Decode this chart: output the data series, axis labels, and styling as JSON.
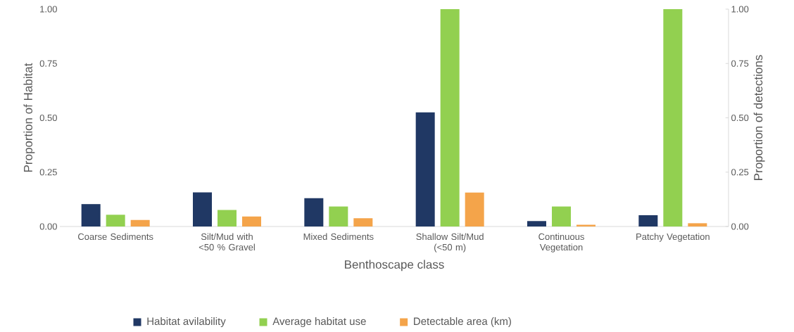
{
  "chart_data": {
    "type": "bar",
    "xlabel": "Benthoscape class",
    "ylabel": "Proportion of Habitat",
    "y2label": "Proportion of detections",
    "categories": [
      "Coarse Sediments",
      "Silt/Mud with <50 % Gravel",
      "Mixed Sediments",
      "Shallow Silt/Mud (<50 m)",
      "Continuous Vegetation",
      "Patchy Vegetation"
    ],
    "series": [
      {
        "name": "Habitat avilability",
        "color": "#203864",
        "values": [
          0.103,
          0.157,
          0.13,
          0.525,
          0.025,
          0.052
        ]
      },
      {
        "name": "Average habitat use",
        "color": "#92d050",
        "axis": "y2",
        "values": [
          0.054,
          0.076,
          0.092,
          1.0,
          0.092,
          1.0
        ]
      },
      {
        "name": "Detectable area (km)",
        "color": "#f4a44a",
        "values": [
          0.03,
          0.046,
          0.038,
          0.156,
          0.008,
          0.015
        ]
      }
    ],
    "ylim": [
      0,
      1
    ],
    "yticks": [
      {
        "value": 0,
        "label": "0.00"
      },
      {
        "value": 0.25,
        "label": "0.25"
      },
      {
        "value": 0.5,
        "label": "0.50"
      },
      {
        "value": 0.75,
        "label": "0.75"
      },
      {
        "value": 1,
        "label": "1.00"
      }
    ],
    "y2lim": [
      0,
      1
    ],
    "y2ticks": [
      {
        "value": 0,
        "label": "0.00"
      },
      {
        "value": 0.25,
        "label": "0.25"
      },
      {
        "value": 0.5,
        "label": "0.50"
      },
      {
        "value": 0.75,
        "label": "0.75"
      },
      {
        "value": 1,
        "label": "1.00"
      }
    ],
    "legend": "bottom",
    "grid": false
  }
}
